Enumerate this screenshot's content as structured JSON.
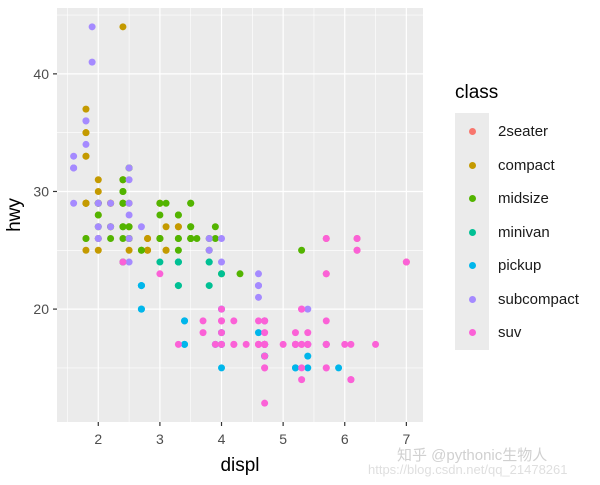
{
  "chart_data": {
    "type": "scatter",
    "title": "",
    "xlabel": "displ",
    "ylabel": "hwy",
    "xlim": [
      1.33,
      7.27
    ],
    "ylim": [
      10.4,
      45.6
    ],
    "xticks": [
      2,
      3,
      4,
      5,
      6,
      7
    ],
    "yticks": [
      20,
      30,
      40
    ],
    "grid": true,
    "legend": {
      "title": "class",
      "position": "right"
    },
    "series": [
      {
        "name": "2seater",
        "color": "#F8766D",
        "points": [
          [
            5.7,
            26
          ],
          [
            5.7,
            23
          ],
          [
            6.2,
            26
          ],
          [
            6.2,
            25
          ],
          [
            7.0,
            24
          ]
        ]
      },
      {
        "name": "compact",
        "color": "#C49A00",
        "points": [
          [
            1.8,
            29
          ],
          [
            1.8,
            29
          ],
          [
            2.0,
            31
          ],
          [
            2.0,
            30
          ],
          [
            2.8,
            26
          ],
          [
            2.8,
            26
          ],
          [
            3.1,
            27
          ],
          [
            1.8,
            26
          ],
          [
            1.8,
            25
          ],
          [
            2.0,
            28
          ],
          [
            2.0,
            29
          ],
          [
            2.8,
            25
          ],
          [
            2.8,
            25
          ],
          [
            3.1,
            25
          ],
          [
            3.1,
            25
          ],
          [
            2.2,
            27
          ],
          [
            2.2,
            29
          ],
          [
            2.4,
            31
          ],
          [
            2.4,
            31
          ],
          [
            3.0,
            26
          ],
          [
            3.0,
            26
          ],
          [
            3.3,
            27
          ],
          [
            1.8,
            29
          ],
          [
            1.8,
            29
          ],
          [
            1.8,
            33
          ],
          [
            1.8,
            35
          ],
          [
            1.8,
            37
          ],
          [
            1.8,
            35
          ],
          [
            1.8,
            29
          ],
          [
            2.0,
            26
          ],
          [
            2.0,
            29
          ],
          [
            2.0,
            29
          ],
          [
            2.4,
            24
          ],
          [
            2.4,
            44
          ],
          [
            2.5,
            29
          ],
          [
            2.5,
            26
          ],
          [
            2.2,
            29
          ],
          [
            2.2,
            29
          ],
          [
            2.4,
            29
          ],
          [
            2.4,
            29
          ],
          [
            3.0,
            29
          ],
          [
            3.0,
            29
          ],
          [
            3.3,
            27
          ],
          [
            1.8,
            33
          ],
          [
            1.8,
            29
          ],
          [
            2.0,
            26
          ],
          [
            2.0,
            25
          ],
          [
            2.5,
            27
          ],
          [
            2.5,
            25
          ],
          [
            2.5,
            26
          ]
        ]
      },
      {
        "name": "midsize",
        "color": "#53B400",
        "points": [
          [
            2.4,
            27
          ],
          [
            2.4,
            30
          ],
          [
            2.5,
            32
          ],
          [
            2.5,
            32
          ],
          [
            3.3,
            26
          ],
          [
            3.3,
            28
          ],
          [
            2.4,
            26
          ],
          [
            2.4,
            29
          ],
          [
            3.1,
            29
          ],
          [
            3.5,
            29
          ],
          [
            3.6,
            26
          ],
          [
            2.4,
            30
          ],
          [
            2.4,
            31
          ],
          [
            2.5,
            26
          ],
          [
            3.0,
            26
          ],
          [
            3.3,
            28
          ],
          [
            2.0,
            28
          ],
          [
            2.0,
            29
          ],
          [
            2.0,
            27
          ],
          [
            2.0,
            29
          ],
          [
            2.7,
            25
          ],
          [
            2.7,
            25
          ],
          [
            3.5,
            26
          ],
          [
            3.5,
            26
          ],
          [
            3.9,
            26
          ],
          [
            3.9,
            27
          ],
          [
            4.3,
            23
          ],
          [
            4.0,
            23
          ],
          [
            2.5,
            27
          ],
          [
            2.5,
            26
          ],
          [
            3.5,
            27
          ],
          [
            3.5,
            29
          ],
          [
            3.0,
            26
          ],
          [
            3.5,
            26
          ],
          [
            1.8,
            26
          ],
          [
            2.2,
            26
          ],
          [
            2.2,
            27
          ],
          [
            2.4,
            29
          ],
          [
            2.4,
            27
          ],
          [
            3.0,
            28
          ],
          [
            3.0,
            29
          ],
          [
            3.5,
            26
          ],
          [
            3.5,
            27
          ],
          [
            3.3,
            25
          ],
          [
            3.3,
            26
          ],
          [
            3.8,
            25
          ],
          [
            3.8,
            26
          ],
          [
            5.3,
            25
          ]
        ]
      },
      {
        "name": "minivan",
        "color": "#00C094",
        "points": [
          [
            2.4,
            24
          ],
          [
            3.0,
            24
          ],
          [
            3.3,
            22
          ],
          [
            3.3,
            22
          ],
          [
            3.3,
            24
          ],
          [
            3.3,
            24
          ],
          [
            3.3,
            24
          ],
          [
            3.8,
            22
          ],
          [
            3.8,
            24
          ],
          [
            3.8,
            24
          ],
          [
            4.0,
            23
          ]
        ]
      },
      {
        "name": "pickup",
        "color": "#00B6EB",
        "points": [
          [
            2.7,
            20
          ],
          [
            2.7,
            22
          ],
          [
            2.7,
            22
          ],
          [
            3.4,
            17
          ],
          [
            3.4,
            19
          ],
          [
            4.0,
            18
          ],
          [
            4.7,
            17
          ],
          [
            4.7,
            16
          ],
          [
            4.7,
            17
          ],
          [
            5.7,
            17
          ],
          [
            4.7,
            16
          ],
          [
            4.7,
            19
          ],
          [
            4.7,
            16
          ],
          [
            5.2,
            17
          ],
          [
            5.2,
            15
          ],
          [
            3.9,
            17
          ],
          [
            4.7,
            17
          ],
          [
            4.7,
            17
          ],
          [
            5.2,
            15
          ],
          [
            5.7,
            17
          ],
          [
            5.9,
            15
          ],
          [
            2.7,
            22
          ],
          [
            2.7,
            20
          ],
          [
            3.4,
            17
          ],
          [
            3.4,
            19
          ],
          [
            4.0,
            20
          ],
          [
            4.0,
            17
          ],
          [
            4.0,
            17
          ],
          [
            4.6,
            18
          ],
          [
            4.0,
            15
          ],
          [
            5.4,
            17
          ],
          [
            5.4,
            15
          ],
          [
            5.4,
            16
          ]
        ]
      },
      {
        "name": "subcompact",
        "color": "#A58AFF",
        "points": [
          [
            3.8,
            26
          ],
          [
            3.8,
            25
          ],
          [
            4.0,
            26
          ],
          [
            4.0,
            24
          ],
          [
            4.6,
            21
          ],
          [
            4.6,
            22
          ],
          [
            4.6,
            23
          ],
          [
            4.6,
            22
          ],
          [
            5.4,
            20
          ],
          [
            1.6,
            33
          ],
          [
            1.6,
            32
          ],
          [
            1.6,
            32
          ],
          [
            1.6,
            29
          ],
          [
            1.6,
            32
          ],
          [
            1.8,
            34
          ],
          [
            1.8,
            36
          ],
          [
            1.8,
            36
          ],
          [
            2.0,
            29
          ],
          [
            2.0,
            26
          ],
          [
            2.0,
            27
          ],
          [
            1.9,
            44
          ],
          [
            1.9,
            41
          ],
          [
            2.0,
            29
          ],
          [
            2.0,
            26
          ],
          [
            2.5,
            28
          ],
          [
            2.5,
            29
          ],
          [
            2.2,
            29
          ],
          [
            2.2,
            27
          ],
          [
            2.5,
            31
          ],
          [
            2.5,
            32
          ],
          [
            2.7,
            27
          ],
          [
            2.5,
            26
          ],
          [
            2.5,
            24
          ]
        ]
      },
      {
        "name": "suv",
        "color": "#FB61D7",
        "points": [
          [
            5.3,
            20
          ],
          [
            5.3,
            15
          ],
          [
            5.3,
            20
          ],
          [
            5.7,
            17
          ],
          [
            6.0,
            17
          ],
          [
            5.7,
            26
          ],
          [
            5.7,
            23
          ],
          [
            6.2,
            26
          ],
          [
            6.2,
            25
          ],
          [
            7.0,
            24
          ],
          [
            5.3,
            17
          ],
          [
            5.7,
            17
          ],
          [
            6.5,
            17
          ],
          [
            2.4,
            24
          ],
          [
            3.0,
            23
          ],
          [
            4.7,
            17
          ],
          [
            4.7,
            19
          ],
          [
            4.7,
            19
          ],
          [
            5.2,
            18
          ],
          [
            5.2,
            17
          ],
          [
            3.7,
            19
          ],
          [
            3.7,
            18
          ],
          [
            4.7,
            18
          ],
          [
            4.7,
            17
          ],
          [
            4.7,
            17
          ],
          [
            4.7,
            17
          ],
          [
            5.7,
            19
          ],
          [
            6.1,
            14
          ],
          [
            4.0,
            19
          ],
          [
            4.0,
            18
          ],
          [
            4.6,
            17
          ],
          [
            5.0,
            17
          ],
          [
            4.2,
            17
          ],
          [
            4.2,
            19
          ],
          [
            4.6,
            19
          ],
          [
            4.6,
            17
          ],
          [
            5.4,
            17
          ],
          [
            5.4,
            18
          ],
          [
            5.4,
            17
          ],
          [
            4.0,
            17
          ],
          [
            4.0,
            19
          ],
          [
            4.7,
            19
          ],
          [
            4.7,
            17
          ],
          [
            5.7,
            17
          ],
          [
            6.1,
            17
          ],
          [
            5.3,
            14
          ],
          [
            5.3,
            17
          ],
          [
            4.0,
            20
          ],
          [
            4.4,
            17
          ],
          [
            4.7,
            12
          ],
          [
            4.7,
            15
          ],
          [
            4.7,
            17
          ],
          [
            3.9,
            17
          ],
          [
            4.7,
            16
          ],
          [
            4.7,
            15
          ],
          [
            5.2,
            17
          ],
          [
            5.2,
            17
          ],
          [
            5.7,
            15
          ],
          [
            5.7,
            15
          ],
          [
            6.1,
            14
          ],
          [
            4.2,
            17
          ],
          [
            3.3,
            17
          ],
          [
            4.0,
            17
          ],
          [
            4.6,
            17
          ],
          [
            5.4,
            17
          ]
        ]
      }
    ]
  },
  "plot": {
    "panel_bg": "#EBEBEB",
    "grid_color": "#FFFFFF",
    "text_color": "#4D4D4D",
    "point_size": 3.5
  },
  "legend": {
    "title": "class",
    "items": [
      {
        "label": "2seater",
        "color": "#F8766D"
      },
      {
        "label": "compact",
        "color": "#C49A00"
      },
      {
        "label": "midsize",
        "color": "#53B400"
      },
      {
        "label": "minivan",
        "color": "#00C094"
      },
      {
        "label": "pickup",
        "color": "#00B6EB"
      },
      {
        "label": "subcompact",
        "color": "#A58AFF"
      },
      {
        "label": "suv",
        "color": "#FB61D7"
      }
    ]
  },
  "watermark": {
    "line1": "知乎 @pythonic生物人",
    "line2": "https://blog.csdn.net/qq_21478261"
  }
}
